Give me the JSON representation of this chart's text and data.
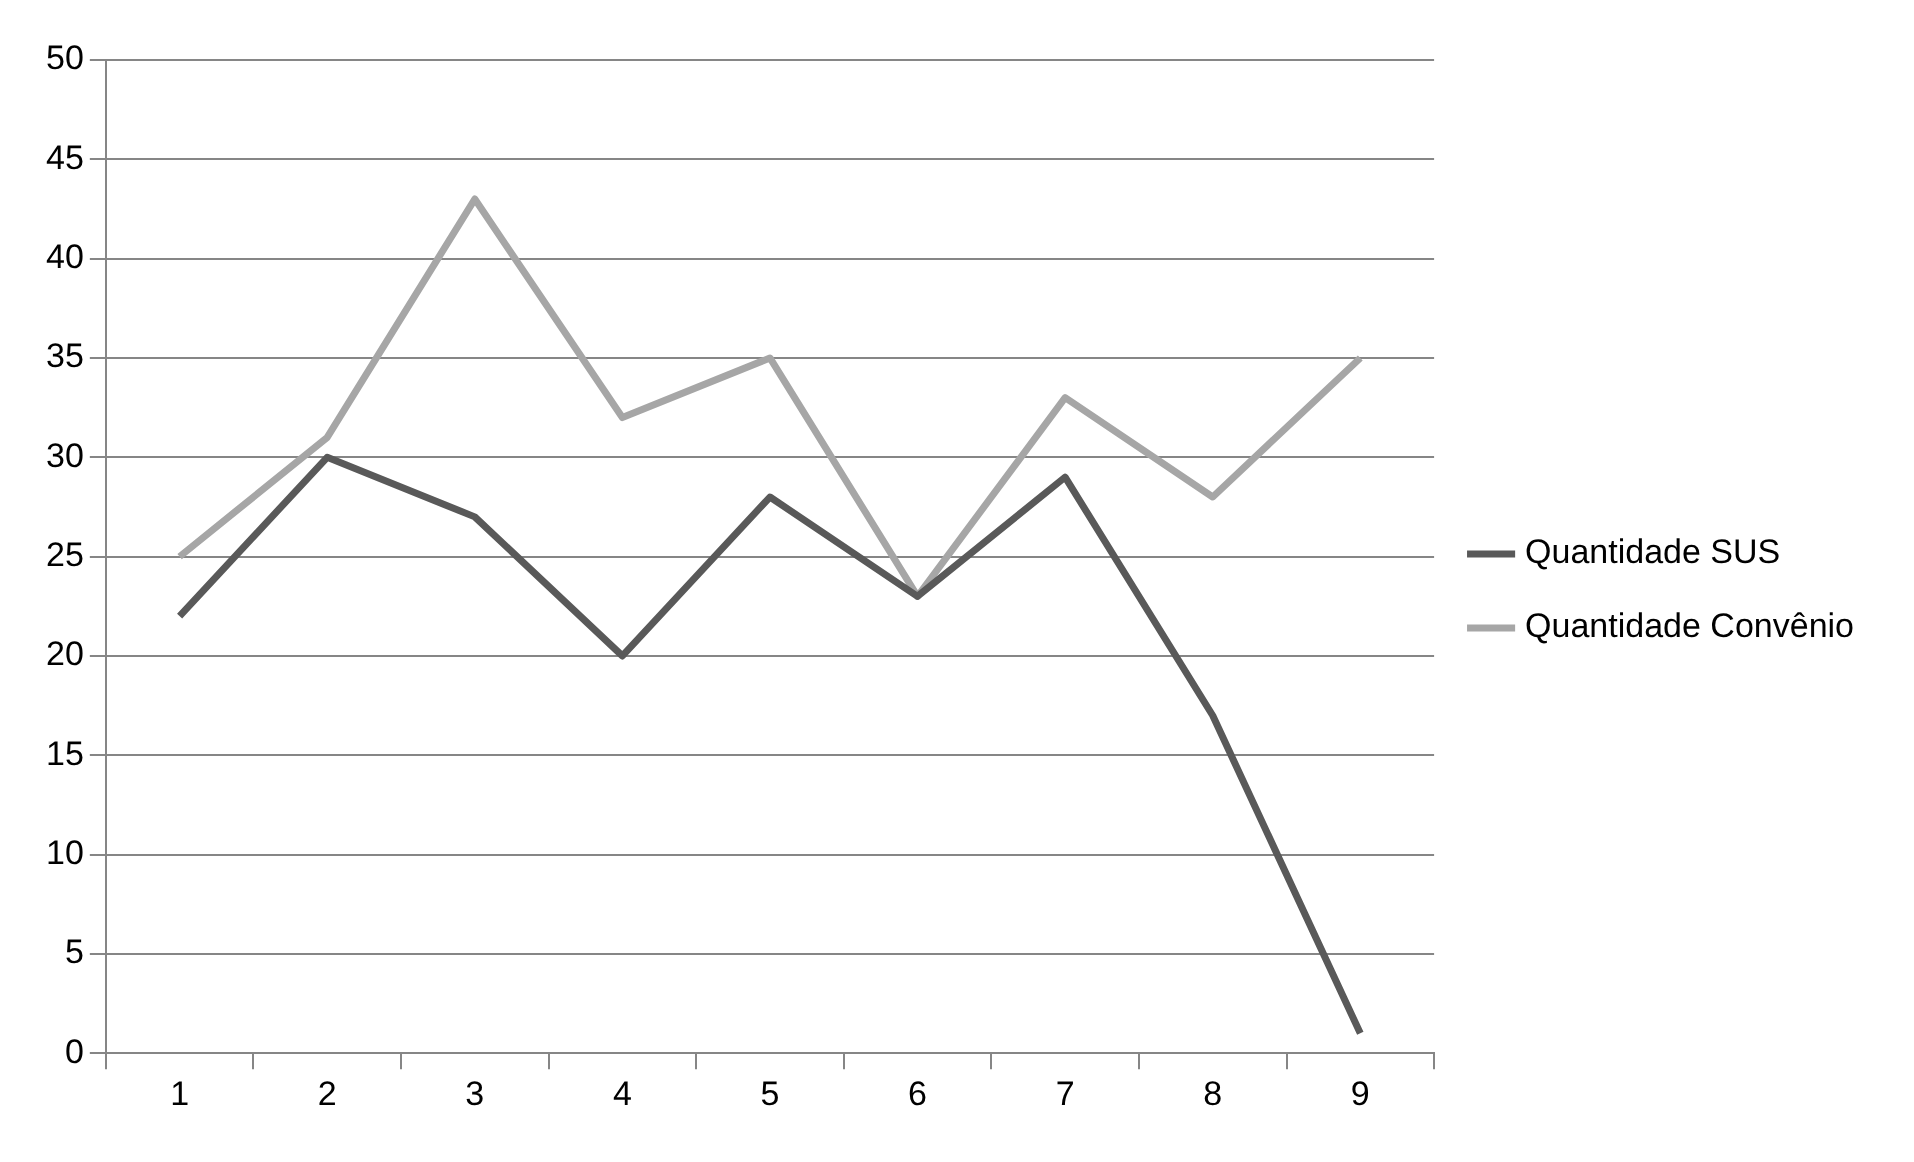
{
  "chart_data": {
    "type": "line",
    "categories": [
      "1",
      "2",
      "3",
      "4",
      "5",
      "6",
      "7",
      "8",
      "9"
    ],
    "series": [
      {
        "name": "Quantidade SUS",
        "color": "#595959",
        "values": [
          22,
          30,
          27,
          20,
          28,
          23,
          29,
          17,
          1
        ]
      },
      {
        "name": "Quantidade Convênio",
        "color": "#a6a6a6",
        "values": [
          25,
          31,
          43,
          32,
          35,
          23,
          33,
          28,
          35
        ]
      }
    ],
    "ylim": [
      0,
      50
    ],
    "yticks": [
      0,
      5,
      10,
      15,
      20,
      25,
      30,
      35,
      40,
      45,
      50
    ],
    "grid": "y",
    "legend": "right",
    "marker": "none",
    "line_style": "solid"
  }
}
